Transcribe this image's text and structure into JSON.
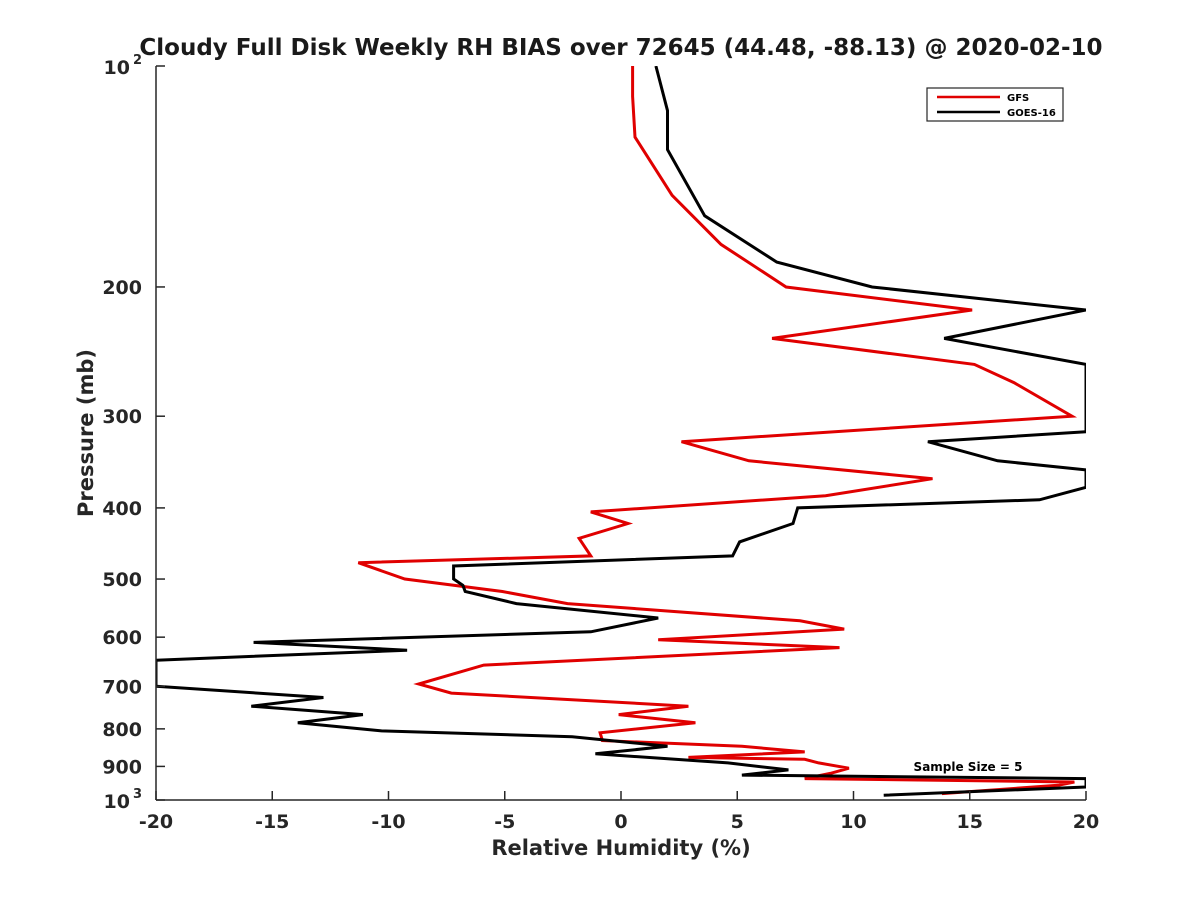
{
  "chart_data": {
    "type": "line",
    "title": "Cloudy Full Disk Weekly RH BIAS over 72645 (44.48, -88.13) @ 2020-02-10",
    "xlabel": "Relative Humidity (%)",
    "ylabel": "Pressure (mb)",
    "xlim": [
      -20,
      20
    ],
    "ylim": [
      100,
      1000
    ],
    "yscale": "log",
    "y_reversed": true,
    "grid": false,
    "x_ticks": [
      -20,
      -15,
      -10,
      -5,
      0,
      5,
      10,
      15,
      20
    ],
    "x_tick_labels": [
      "-20",
      "-15",
      "-10",
      "-5",
      "0",
      "5",
      "10",
      "15",
      "20"
    ],
    "y_ticks": [
      200,
      300,
      400,
      500,
      600,
      700,
      800,
      900
    ],
    "y_tick_labels": [
      "200",
      "300",
      "400",
      "500",
      "600",
      "700",
      "800",
      "900"
    ],
    "y_edge_labels": [
      {
        "value": 100,
        "base": "10",
        "exp": "2"
      },
      {
        "value": 1000,
        "base": "10",
        "exp": "3"
      }
    ],
    "legend_position": "top-right",
    "annotation": "Sample Size = 5",
    "series": [
      {
        "name": "GFS",
        "color": "#e00000",
        "points": [
          [
            0.5,
            100
          ],
          [
            0.5,
            110
          ],
          [
            0.6,
            125
          ],
          [
            2.2,
            150
          ],
          [
            4.3,
            175
          ],
          [
            7.1,
            200
          ],
          [
            15.1,
            215
          ],
          [
            6.5,
            235
          ],
          [
            15.2,
            255
          ],
          [
            16.9,
            270
          ],
          [
            19.4,
            300
          ],
          [
            2.6,
            325
          ],
          [
            5.5,
            345
          ],
          [
            13.4,
            365
          ],
          [
            8.8,
            385
          ],
          [
            -1.3,
            405
          ],
          [
            0.3,
            420
          ],
          [
            -1.8,
            440
          ],
          [
            -1.3,
            465
          ],
          [
            -11.3,
            475
          ],
          [
            -9.3,
            500
          ],
          [
            -5.1,
            520
          ],
          [
            -2.3,
            540
          ],
          [
            7.7,
            570
          ],
          [
            9.6,
            585
          ],
          [
            1.6,
            605
          ],
          [
            9.4,
            620
          ],
          [
            -5.9,
            655
          ],
          [
            -8.7,
            695
          ],
          [
            -7.3,
            715
          ],
          [
            2.9,
            745
          ],
          [
            -0.1,
            765
          ],
          [
            3.2,
            785
          ],
          [
            -0.9,
            810
          ],
          [
            -0.8,
            830
          ],
          [
            5.2,
            845
          ],
          [
            7.9,
            860
          ],
          [
            2.9,
            875
          ],
          [
            7.9,
            880
          ],
          [
            8.5,
            890
          ],
          [
            9.8,
            905
          ],
          [
            9.0,
            920
          ],
          [
            7.9,
            935
          ],
          [
            19.5,
            945
          ],
          [
            18.8,
            955
          ],
          [
            13.8,
            980
          ]
        ]
      },
      {
        "name": "GOES-16",
        "color": "#000000",
        "points": [
          [
            1.5,
            100
          ],
          [
            2.0,
            115
          ],
          [
            2.0,
            130
          ],
          [
            3.6,
            160
          ],
          [
            6.7,
            185
          ],
          [
            10.8,
            200
          ],
          [
            20.0,
            215
          ],
          [
            13.9,
            235
          ],
          [
            20.0,
            255
          ],
          [
            20.0,
            315
          ],
          [
            13.2,
            325
          ],
          [
            16.2,
            345
          ],
          [
            20.0,
            355
          ],
          [
            20.0,
            375
          ],
          [
            18.0,
            390
          ],
          [
            7.6,
            400
          ],
          [
            7.4,
            420
          ],
          [
            5.1,
            445
          ],
          [
            4.8,
            465
          ],
          [
            -7.2,
            480
          ],
          [
            -7.2,
            500
          ],
          [
            -6.8,
            510
          ],
          [
            -6.7,
            520
          ],
          [
            -4.5,
            540
          ],
          [
            1.6,
            565
          ],
          [
            -1.3,
            590
          ],
          [
            -15.8,
            610
          ],
          [
            -9.2,
            625
          ],
          [
            -20.0,
            645
          ],
          [
            -20.0,
            700
          ],
          [
            -12.8,
            725
          ],
          [
            -15.9,
            745
          ],
          [
            -11.1,
            765
          ],
          [
            -13.9,
            785
          ],
          [
            -10.3,
            805
          ],
          [
            -2.1,
            820
          ],
          [
            2.0,
            845
          ],
          [
            -1.1,
            865
          ],
          [
            4.6,
            890
          ],
          [
            7.2,
            910
          ],
          [
            5.2,
            925
          ],
          [
            20.0,
            935
          ],
          [
            20.0,
            960
          ],
          [
            11.3,
            985
          ]
        ]
      }
    ]
  }
}
